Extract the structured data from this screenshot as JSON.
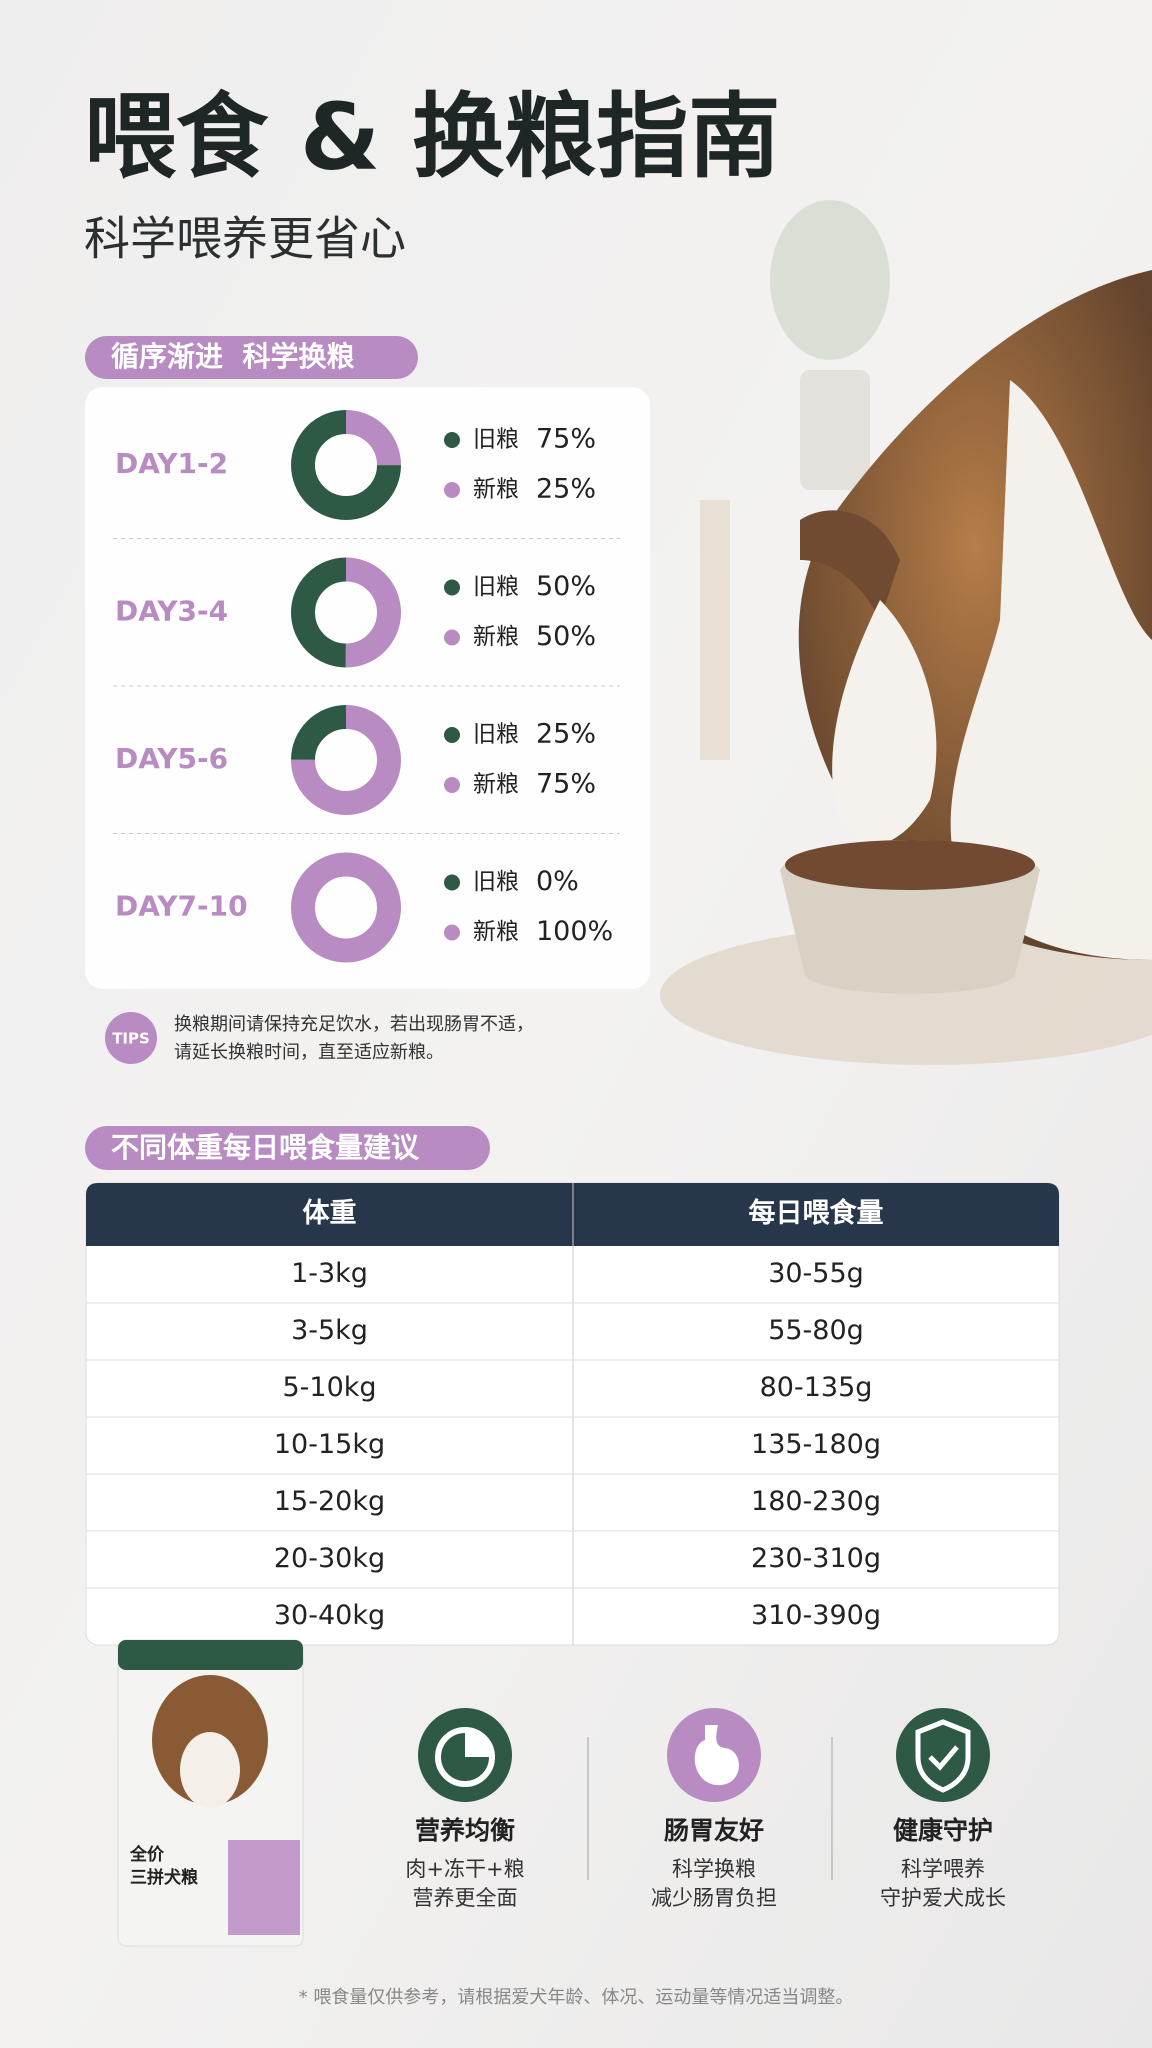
{
  "header": {
    "title": "喂食 & 换粮指南",
    "subtitle": "科学喂养更省心"
  },
  "transition": {
    "heading": "循序渐进  科学换粮",
    "series": [
      {
        "name": "旧粮",
        "color": "#2e5a45"
      },
      {
        "name": "新粮",
        "color": "#b88bc3"
      }
    ],
    "stages": [
      {
        "label": "DAY1-2",
        "values": [
          75,
          25
        ],
        "value_labels": [
          "75%",
          "25%"
        ]
      },
      {
        "label": "DAY3-4",
        "values": [
          50,
          50
        ],
        "value_labels": [
          "50%",
          "50%"
        ]
      },
      {
        "label": "DAY5-6",
        "values": [
          25,
          75
        ],
        "value_labels": [
          "25%",
          "75%"
        ]
      },
      {
        "label": "DAY7-10",
        "values": [
          0,
          100
        ],
        "value_labels": [
          "0%",
          "100%"
        ]
      }
    ],
    "tips": {
      "badge": "TIPS",
      "lines": [
        "换粮期间请保持充足饮水，若出现肠胃不适，",
        "请延长换粮时间，直至适应新粮。"
      ]
    }
  },
  "feeding_table": {
    "heading": "不同体重每日喂食量建议",
    "columns": [
      "体重",
      "每日喂食量"
    ],
    "rows": [
      [
        "1-3kg",
        "30-55g"
      ],
      [
        "3-5kg",
        "55-80g"
      ],
      [
        "5-10kg",
        "80-135g"
      ],
      [
        "10-15kg",
        "135-180g"
      ],
      [
        "15-20kg",
        "180-230g"
      ],
      [
        "20-30kg",
        "230-310g"
      ],
      [
        "30-40kg",
        "310-390g"
      ]
    ]
  },
  "product": {
    "name_lines": [
      "全价",
      "三拼犬粮"
    ]
  },
  "features": [
    {
      "title": "营养均衡",
      "lines": [
        "肉+冻干+粮",
        "营养更全面"
      ]
    },
    {
      "title": "肠胃友好",
      "lines": [
        "科学换粮",
        "减少肠胃负担"
      ]
    },
    {
      "title": "健康守护",
      "lines": [
        "科学喂养",
        "守护爱犬成长"
      ]
    }
  ],
  "footnote": "* 喂食量仅供参考，请根据爱犬年龄、体况、运动量等情况适当调整。"
}
